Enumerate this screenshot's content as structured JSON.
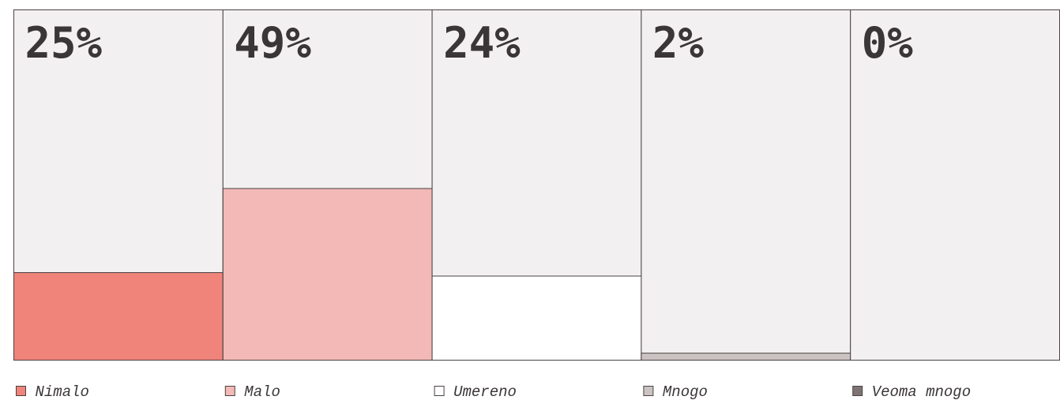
{
  "chart_data": {
    "type": "bar",
    "categories": [
      "Nimalo",
      "Malo",
      "Umereno",
      "Mnogo",
      "Veoma mnogo"
    ],
    "values": [
      25,
      49,
      24,
      2,
      0
    ],
    "value_labels": [
      "25%",
      "49%",
      "24%",
      "2%",
      "0%"
    ],
    "colors": [
      "#f0837a",
      "#f2b9b6",
      "#ffffff",
      "#cbc3c1",
      "#7e7474"
    ],
    "ylim": [
      0,
      100
    ]
  }
}
